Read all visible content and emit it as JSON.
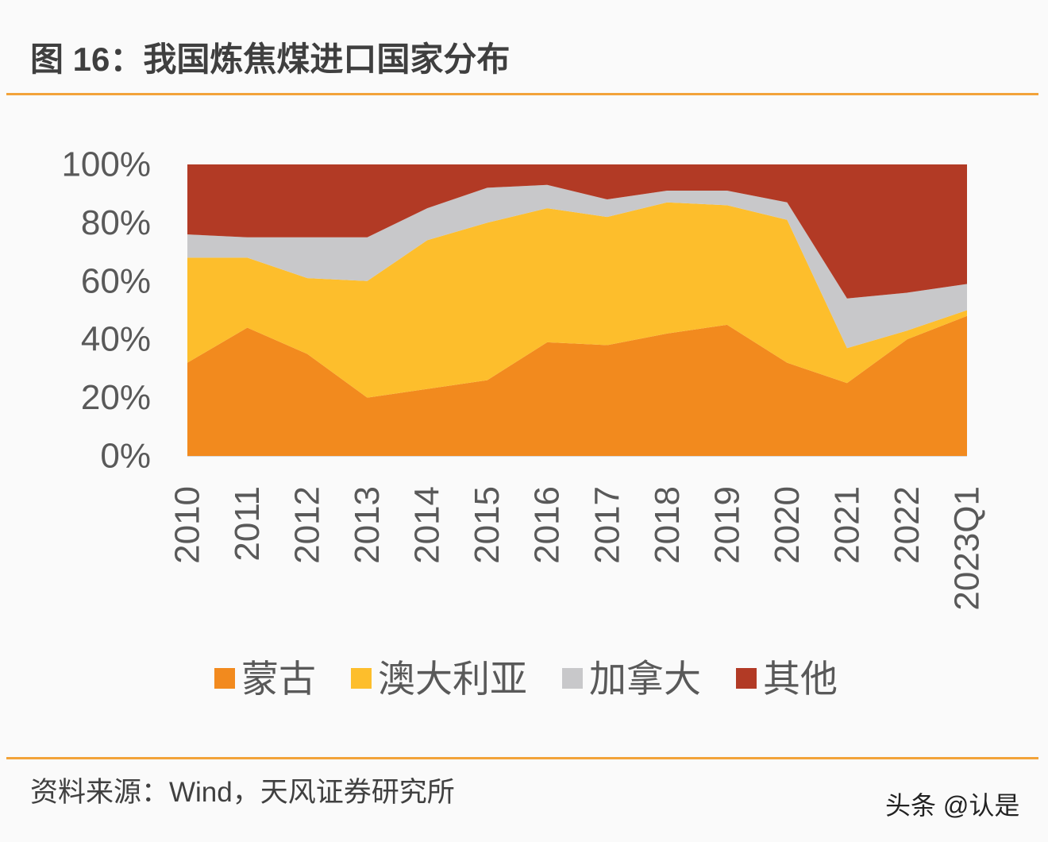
{
  "chart_data": {
    "type": "area",
    "stacking": "percent",
    "title": "图 16：我国炼焦煤进口国家分布",
    "categories": [
      "2010",
      "2011",
      "2012",
      "2013",
      "2014",
      "2015",
      "2016",
      "2017",
      "2018",
      "2019",
      "2020",
      "2021",
      "2022",
      "2023Q1"
    ],
    "series": [
      {
        "name": "蒙古",
        "color": "#F28A1E",
        "values": [
          32,
          44,
          35,
          20,
          23,
          26,
          39,
          38,
          42,
          45,
          32,
          25,
          40,
          48
        ]
      },
      {
        "name": "澳大利亚",
        "color": "#FDBE2C",
        "values": [
          36,
          24,
          26,
          40,
          51,
          54,
          46,
          44,
          45,
          41,
          49,
          12,
          3,
          2
        ]
      },
      {
        "name": "加拿大",
        "color": "#C8C8CA",
        "values": [
          8,
          7,
          14,
          15,
          11,
          12,
          8,
          6,
          4,
          5,
          6,
          17,
          13,
          9
        ]
      },
      {
        "name": "其他",
        "color": "#B23A25",
        "values": [
          24,
          25,
          25,
          25,
          15,
          8,
          7,
          12,
          9,
          9,
          13,
          46,
          44,
          41
        ]
      }
    ],
    "ylim": [
      0,
      100
    ],
    "ytick_labels": [
      "0%",
      "20%",
      "40%",
      "60%",
      "80%",
      "100%"
    ],
    "grid": false,
    "legend": "bottom"
  },
  "source": "资料来源：Wind，天风证券研究所",
  "watermark": "头条 @认是",
  "colors": {
    "rule": "#F2A33A",
    "title_text": "#3F3F3F",
    "axis_text": "#595959",
    "background": "#FAFAFA"
  }
}
